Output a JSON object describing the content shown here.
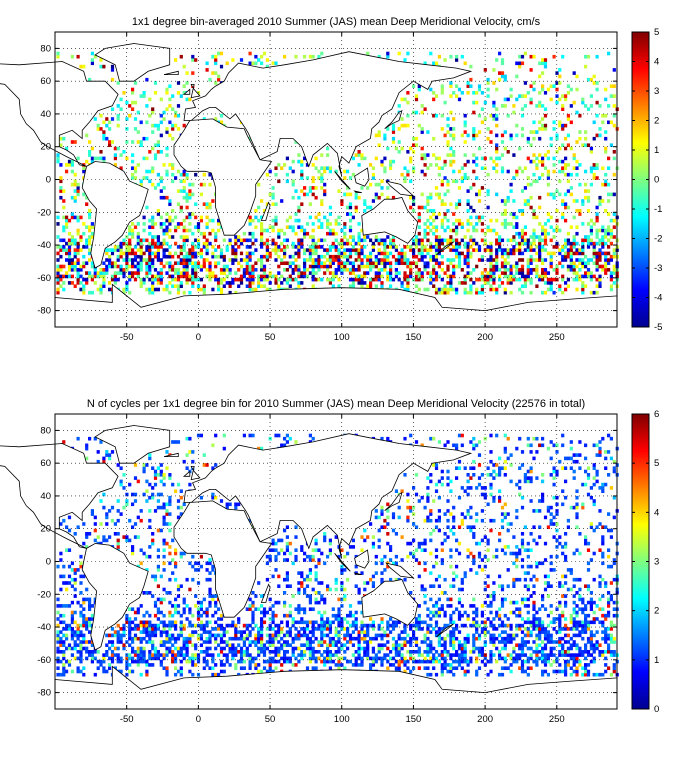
{
  "chart_data": [
    {
      "type": "heatmap",
      "title": "1x1 degree bin-averaged 2010 Summer (JAS) mean Deep Meridional Velocity, cm/s",
      "xlabel": "",
      "ylabel": "",
      "xlim": [
        -100,
        292
      ],
      "ylim": [
        -90,
        90
      ],
      "xticks": [
        -50,
        0,
        50,
        100,
        150,
        200,
        250
      ],
      "yticks": [
        -80,
        -60,
        -40,
        -20,
        0,
        20,
        40,
        60,
        80
      ],
      "grid": true,
      "colormap": "jet",
      "colorbar": {
        "min": -5,
        "max": 5,
        "ticks": [
          -5,
          -4,
          -3,
          -2,
          -1,
          0,
          1,
          2,
          3,
          4,
          5
        ]
      },
      "value_distribution": "scattered 1x1 degree ocean bins, values mostly near 0 (cyan/green/yellow) with strong positive and negative values concentrated along 40-60S (Antarctic Circumpolar Current) and in western boundary currents"
    },
    {
      "type": "heatmap",
      "title": "N of cycles per 1x1 degree bin for 2010 Summer (JAS) mean Deep Meridional Velocity (22576 in total)",
      "xlabel": "",
      "ylabel": "",
      "xlim": [
        -100,
        292
      ],
      "ylim": [
        -90,
        90
      ],
      "xticks": [
        -50,
        0,
        50,
        100,
        150,
        200,
        250
      ],
      "yticks": [
        -80,
        -60,
        -40,
        -20,
        0,
        20,
        40,
        60,
        80
      ],
      "grid": true,
      "colormap": "jet",
      "colorbar": {
        "min": 0,
        "max": 6,
        "ticks": [
          0,
          1,
          2,
          3,
          4,
          5,
          6
        ]
      },
      "value_distribution": "mostly 1-2 cycles per bin (blue), higher counts (yellow-red) scattered in North Atlantic, northwest Pacific and Southern Ocean"
    }
  ]
}
